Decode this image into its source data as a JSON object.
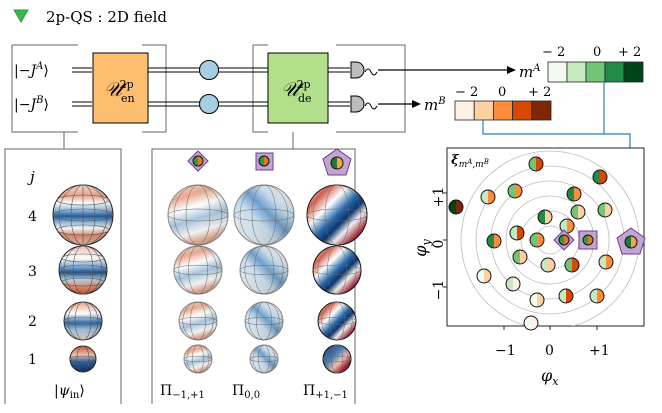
{
  "header": {
    "title": "2p-QS : 2D field",
    "marker_color": "#3cb84a"
  },
  "circuit": {
    "input_a": "|−J^A⟩",
    "input_b": "|−J^B⟩",
    "encoder": {
      "label": "𝒰",
      "sub": "en",
      "sup": "2p",
      "color": "#fdbf6f"
    },
    "decoder": {
      "label": "𝒰",
      "sub": "de",
      "sup": "2p",
      "color": "#b2df8a"
    },
    "node_color": "#a6cee3",
    "output_a": "m^A",
    "output_b": "m^B"
  },
  "scales": {
    "ma": {
      "ticks": [
        "− 2",
        "0",
        "+ 2"
      ],
      "colors": [
        "#f2faf0",
        "#c7e9c0",
        "#74c476",
        "#238b45",
        "#00441b"
      ]
    },
    "mb": {
      "ticks": [
        "− 2",
        "0",
        "+ 2"
      ],
      "colors": [
        "#fff2e5",
        "#fdd0a2",
        "#fd8d3c",
        "#d94801",
        "#7f2704"
      ]
    }
  },
  "states_panel": {
    "j_label": "j",
    "rows": [
      "4",
      "3",
      "2",
      "1"
    ],
    "caption": "|ψin⟩"
  },
  "projection_panel": {
    "captions": [
      "Π−1,+1",
      "Π0,0",
      "Π+1,−1"
    ]
  },
  "scatter": {
    "title": "ξ mA,mB",
    "xlabel": "φx",
    "ylabel": "φy",
    "xticks": [
      "−1",
      "0",
      "+1"
    ],
    "yticks": [
      "+1",
      "0",
      "−1"
    ],
    "marker_color": "#c2a5cf"
  }
}
